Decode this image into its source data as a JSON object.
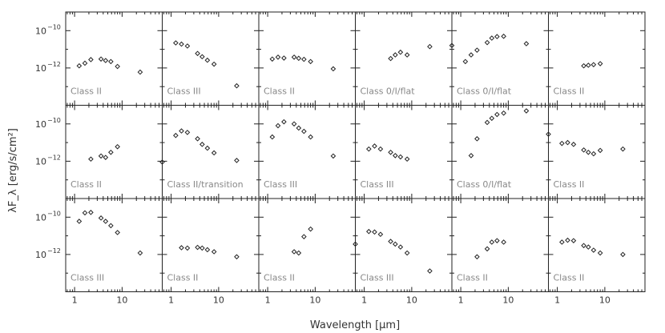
{
  "chart_data": {
    "type": "scatter",
    "layout": "grid 3x6 of SED panels",
    "xlabel": "Wavelength [μm]",
    "ylabel": "λF_λ [erg/s/cm²]",
    "x_scale": "log",
    "y_scale": "log",
    "xlim": [
      0.65,
      70
    ],
    "ylim": [
      1e-14,
      1e-09
    ],
    "x_ticks": [
      {
        "value": 1,
        "label": "1"
      },
      {
        "value": 10,
        "label": "10"
      }
    ],
    "y_ticks": [
      {
        "value": 1e-10,
        "label": "10",
        "exp": "−10"
      },
      {
        "value": 1e-12,
        "label": "10",
        "exp": "−12"
      }
    ],
    "panels": [
      {
        "label": "Class II",
        "points": [
          [
            1.25,
            1.3e-12
          ],
          [
            1.65,
            1.8e-12
          ],
          [
            2.2,
            2.8e-12
          ],
          [
            3.6,
            3e-12
          ],
          [
            4.5,
            2.5e-12
          ],
          [
            5.8,
            2.2e-12
          ],
          [
            8,
            1.2e-12
          ],
          [
            24,
            6e-13
          ]
        ]
      },
      {
        "label": "Class III",
        "points": [
          [
            1.25,
            2.2e-11
          ],
          [
            1.65,
            1.9e-11
          ],
          [
            2.2,
            1.5e-11
          ],
          [
            3.6,
            6e-12
          ],
          [
            4.5,
            4e-12
          ],
          [
            5.8,
            2.6e-12
          ],
          [
            8,
            1.6e-12
          ],
          [
            24,
            1.1e-13
          ]
        ]
      },
      {
        "label": "Class II",
        "points": [
          [
            1.25,
            3e-12
          ],
          [
            1.65,
            3.8e-12
          ],
          [
            2.2,
            3.4e-12
          ],
          [
            3.6,
            3.8e-12
          ],
          [
            4.5,
            3.3e-12
          ],
          [
            5.8,
            2.9e-12
          ],
          [
            8,
            2.2e-12
          ],
          [
            24,
            9e-13
          ]
        ]
      },
      {
        "label": "Class 0/I/flat",
        "points": [
          [
            3.6,
            3.2e-12
          ],
          [
            4.5,
            5e-12
          ],
          [
            5.8,
            7e-12
          ],
          [
            8,
            5e-12
          ],
          [
            24,
            1.4e-11
          ],
          [
            70,
            1.6e-11
          ]
        ]
      },
      {
        "label": "Class 0/I/flat",
        "points": [
          [
            1.25,
            2.2e-12
          ],
          [
            1.65,
            5e-12
          ],
          [
            2.2,
            9e-12
          ],
          [
            3.6,
            2.3e-11
          ],
          [
            4.5,
            4e-11
          ],
          [
            5.8,
            4.8e-11
          ],
          [
            8,
            5e-11
          ],
          [
            24,
            2e-11
          ]
        ]
      },
      {
        "label": "Class II",
        "points": [
          [
            3.6,
            1.3e-12
          ],
          [
            4.5,
            1.4e-12
          ],
          [
            5.8,
            1.5e-12
          ],
          [
            8,
            1.7e-12
          ]
        ]
      },
      {
        "label": "Class II",
        "points": [
          [
            2.2,
            1.3e-12
          ],
          [
            3.6,
            1.9e-12
          ],
          [
            4.5,
            1.6e-12
          ],
          [
            5.8,
            3e-12
          ],
          [
            8,
            6e-12
          ],
          [
            70,
            9e-13
          ]
        ]
      },
      {
        "label": "Class II/transition",
        "points": [
          [
            1.25,
            2.4e-11
          ],
          [
            1.65,
            4.2e-11
          ],
          [
            2.2,
            3.5e-11
          ],
          [
            3.6,
            1.6e-11
          ],
          [
            4.5,
            8e-12
          ],
          [
            5.8,
            5e-12
          ],
          [
            8,
            2.8e-12
          ],
          [
            24,
            1.1e-12
          ]
        ]
      },
      {
        "label": "Class III",
        "points": [
          [
            1.25,
            2e-11
          ],
          [
            1.65,
            8e-11
          ],
          [
            2.2,
            1.3e-10
          ],
          [
            3.6,
            1e-10
          ],
          [
            4.5,
            6e-11
          ],
          [
            5.8,
            4e-11
          ],
          [
            8,
            2e-11
          ],
          [
            24,
            1.9e-12
          ]
        ]
      },
      {
        "label": "Class III",
        "points": [
          [
            1.25,
            4.5e-12
          ],
          [
            1.65,
            6.5e-12
          ],
          [
            2.2,
            4.5e-12
          ],
          [
            3.6,
            3e-12
          ],
          [
            4.5,
            2e-12
          ],
          [
            5.8,
            1.7e-12
          ],
          [
            8,
            1.3e-12
          ]
        ]
      },
      {
        "label": "Class 0/I/flat",
        "points": [
          [
            1.65,
            2e-12
          ],
          [
            2.2,
            1.6e-11
          ],
          [
            3.6,
            1.2e-10
          ],
          [
            4.5,
            2e-10
          ],
          [
            5.8,
            3.2e-10
          ],
          [
            8,
            3.8e-10
          ],
          [
            24,
            5e-10
          ],
          [
            70,
            2.8e-11
          ]
        ]
      },
      {
        "label": "Class II",
        "points": [
          [
            1.25,
            9e-12
          ],
          [
            1.65,
            1e-11
          ],
          [
            2.2,
            8e-12
          ],
          [
            3.6,
            4e-12
          ],
          [
            4.5,
            3e-12
          ],
          [
            5.8,
            2.5e-12
          ],
          [
            8,
            3.8e-12
          ],
          [
            24,
            4.5e-12
          ]
        ]
      },
      {
        "label": "Class III",
        "points": [
          [
            1.25,
            6e-11
          ],
          [
            1.65,
            1.7e-10
          ],
          [
            2.2,
            1.8e-10
          ],
          [
            3.6,
            9e-11
          ],
          [
            4.5,
            6e-11
          ],
          [
            5.8,
            3.5e-11
          ],
          [
            8,
            1.5e-11
          ],
          [
            24,
            1.2e-12
          ]
        ]
      },
      {
        "label": "Class II",
        "points": [
          [
            1.65,
            2.3e-12
          ],
          [
            2.2,
            2.2e-12
          ],
          [
            3.6,
            2.4e-12
          ],
          [
            4.5,
            2.2e-12
          ],
          [
            5.8,
            1.8e-12
          ],
          [
            8,
            1.4e-12
          ],
          [
            24,
            7.5e-13
          ]
        ]
      },
      {
        "label": "Class II",
        "points": [
          [
            3.6,
            1.4e-12
          ],
          [
            4.5,
            1.2e-12
          ],
          [
            5.8,
            9e-12
          ],
          [
            8,
            2.3e-11
          ],
          [
            70,
            3.6e-12
          ]
        ]
      },
      {
        "label": "Class III",
        "points": [
          [
            1.25,
            1.7e-11
          ],
          [
            1.65,
            1.6e-11
          ],
          [
            2.2,
            1.2e-11
          ],
          [
            3.6,
            5e-12
          ],
          [
            4.5,
            3.6e-12
          ],
          [
            5.8,
            2.5e-12
          ],
          [
            8,
            1.2e-12
          ],
          [
            24,
            1.3e-13
          ]
        ]
      },
      {
        "label": "Class II",
        "points": [
          [
            2.2,
            7.5e-13
          ],
          [
            3.6,
            2e-12
          ],
          [
            4.5,
            4.6e-12
          ],
          [
            5.8,
            5.5e-12
          ],
          [
            8,
            4.6e-12
          ]
        ]
      },
      {
        "label": "Class II",
        "points": [
          [
            1.25,
            4.6e-12
          ],
          [
            1.65,
            5.8e-12
          ],
          [
            2.2,
            5.5e-12
          ],
          [
            3.6,
            3e-12
          ],
          [
            4.5,
            2.5e-12
          ],
          [
            5.8,
            1.7e-12
          ],
          [
            8,
            1.2e-12
          ],
          [
            24,
            1e-12
          ]
        ]
      }
    ]
  }
}
